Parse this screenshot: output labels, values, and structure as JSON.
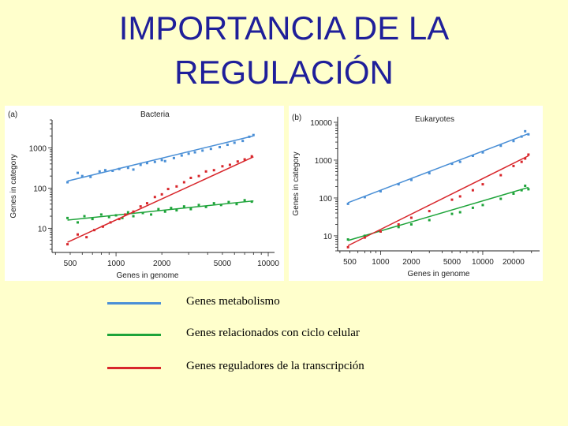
{
  "title": {
    "line1": "IMPORTANCIA DE LA",
    "line2": "REGULACIÓN"
  },
  "colors": {
    "blue": "#4a8fd6",
    "green": "#1ea43a",
    "red": "#d8262b"
  },
  "legend": [
    {
      "label": "Genes metabolismo",
      "color": "#4a8fd6"
    },
    {
      "label": "Genes relacionados con ciclo celular",
      "color": "#1ea43a"
    },
    {
      "label": "Genes reguladores de la transcripción",
      "color": "#d8262b"
    }
  ],
  "chart_data": [
    {
      "type": "scatter",
      "panel": "(a)",
      "title": "Bacteria",
      "xlabel": "Genes in genome",
      "ylabel": "Genes in category",
      "xscale": "log",
      "yscale": "log",
      "xlim": [
        380,
        11000
      ],
      "ylim": [
        2.5,
        5000
      ],
      "xticks": [
        500,
        1000,
        2000,
        5000,
        10000
      ],
      "xtick_labels": [
        "500",
        "1000",
        "2000",
        "5000",
        "10000"
      ],
      "yticks": [
        10,
        100,
        1000
      ],
      "ytick_labels": [
        "10",
        "100",
        "1000"
      ],
      "series": [
        {
          "color": "#4a8fd6",
          "fit": [
            [
              480,
              150
            ],
            [
              8000,
              2000
            ]
          ],
          "points": [
            [
              480,
              140
            ],
            [
              560,
              240
            ],
            [
              600,
              200
            ],
            [
              680,
              190
            ],
            [
              780,
              260
            ],
            [
              850,
              280
            ],
            [
              950,
              270
            ],
            [
              1050,
              300
            ],
            [
              1200,
              320
            ],
            [
              1300,
              290
            ],
            [
              1450,
              380
            ],
            [
              1600,
              420
            ],
            [
              1800,
              450
            ],
            [
              2000,
              500
            ],
            [
              2100,
              470
            ],
            [
              2400,
              560
            ],
            [
              2700,
              650
            ],
            [
              3000,
              720
            ],
            [
              3300,
              780
            ],
            [
              3700,
              860
            ],
            [
              4200,
              950
            ],
            [
              4800,
              1050
            ],
            [
              5400,
              1200
            ],
            [
              6000,
              1350
            ],
            [
              6800,
              1500
            ],
            [
              7500,
              1900
            ],
            [
              8000,
              2100
            ]
          ]
        },
        {
          "color": "#1ea43a",
          "fit": [
            [
              480,
              16
            ],
            [
              8000,
              48
            ]
          ],
          "points": [
            [
              480,
              18
            ],
            [
              560,
              14
            ],
            [
              620,
              20
            ],
            [
              700,
              17
            ],
            [
              800,
              22
            ],
            [
              900,
              19
            ],
            [
              1000,
              21
            ],
            [
              1100,
              18
            ],
            [
              1200,
              25
            ],
            [
              1300,
              20
            ],
            [
              1500,
              24
            ],
            [
              1700,
              22
            ],
            [
              1900,
              30
            ],
            [
              2100,
              26
            ],
            [
              2300,
              32
            ],
            [
              2500,
              28
            ],
            [
              2800,
              35
            ],
            [
              3100,
              30
            ],
            [
              3500,
              38
            ],
            [
              3900,
              34
            ],
            [
              4400,
              42
            ],
            [
              4900,
              38
            ],
            [
              5500,
              45
            ],
            [
              6200,
              40
            ],
            [
              7000,
              50
            ],
            [
              7800,
              46
            ]
          ]
        },
        {
          "color": "#d8262b",
          "fit": [
            [
              480,
              4.5
            ],
            [
              8000,
              600
            ]
          ],
          "points": [
            [
              480,
              4
            ],
            [
              560,
              7
            ],
            [
              640,
              6
            ],
            [
              720,
              9
            ],
            [
              820,
              11
            ],
            [
              920,
              14
            ],
            [
              1050,
              17
            ],
            [
              1150,
              22
            ],
            [
              1300,
              26
            ],
            [
              1450,
              35
            ],
            [
              1600,
              42
            ],
            [
              1800,
              60
            ],
            [
              2000,
              70
            ],
            [
              2200,
              95
            ],
            [
              2500,
              110
            ],
            [
              2800,
              140
            ],
            [
              3100,
              180
            ],
            [
              3500,
              200
            ],
            [
              3900,
              260
            ],
            [
              4400,
              280
            ],
            [
              5000,
              350
            ],
            [
              5600,
              380
            ],
            [
              6300,
              460
            ],
            [
              7000,
              520
            ],
            [
              7800,
              620
            ]
          ]
        }
      ]
    },
    {
      "type": "scatter",
      "panel": "(b)",
      "title": "Eukaryotes",
      "xlabel": "Genes in genome",
      "ylabel": "Genes in category",
      "xscale": "log",
      "yscale": "log",
      "xlim": [
        380,
        36000
      ],
      "ylim": [
        4,
        14000
      ],
      "xticks": [
        500,
        1000,
        2000,
        5000,
        10000,
        20000
      ],
      "xtick_labels": [
        "500",
        "1000",
        "2000",
        "5000",
        "10000",
        "20000"
      ],
      "yticks": [
        10,
        100,
        1000,
        10000
      ],
      "ytick_labels": [
        "10",
        "100",
        "1000",
        "10000"
      ],
      "series": [
        {
          "color": "#4a8fd6",
          "fit": [
            [
              480,
              75
            ],
            [
              28000,
              5000
            ]
          ],
          "points": [
            [
              480,
              70
            ],
            [
              700,
              105
            ],
            [
              1000,
              150
            ],
            [
              1500,
              230
            ],
            [
              2000,
              300
            ],
            [
              3000,
              450
            ],
            [
              5000,
              800
            ],
            [
              6000,
              900
            ],
            [
              8000,
              1300
            ],
            [
              10000,
              1600
            ],
            [
              15000,
              2400
            ],
            [
              20000,
              3200
            ],
            [
              24000,
              4200
            ],
            [
              26000,
              5800
            ],
            [
              28000,
              4800
            ]
          ]
        },
        {
          "color": "#1ea43a",
          "fit": [
            [
              480,
              7.5
            ],
            [
              28000,
              190
            ]
          ],
          "points": [
            [
              480,
              8
            ],
            [
              700,
              10
            ],
            [
              1000,
              13
            ],
            [
              1500,
              17
            ],
            [
              2000,
              20
            ],
            [
              3000,
              26
            ],
            [
              5000,
              38
            ],
            [
              6000,
              42
            ],
            [
              8000,
              55
            ],
            [
              10000,
              65
            ],
            [
              15000,
              95
            ],
            [
              20000,
              130
            ],
            [
              24000,
              160
            ],
            [
              26000,
              210
            ],
            [
              28000,
              170
            ]
          ]
        },
        {
          "color": "#d8262b",
          "fit": [
            [
              480,
              5.5
            ],
            [
              28000,
              1300
            ]
          ],
          "points": [
            [
              480,
              5
            ],
            [
              700,
              9
            ],
            [
              1000,
              13
            ],
            [
              1500,
              20
            ],
            [
              2000,
              30
            ],
            [
              3000,
              45
            ],
            [
              5000,
              90
            ],
            [
              6000,
              110
            ],
            [
              8000,
              160
            ],
            [
              10000,
              230
            ],
            [
              15000,
              400
            ],
            [
              20000,
              700
            ],
            [
              24000,
              900
            ],
            [
              26000,
              1100
            ],
            [
              28000,
              1400
            ]
          ]
        }
      ]
    }
  ]
}
